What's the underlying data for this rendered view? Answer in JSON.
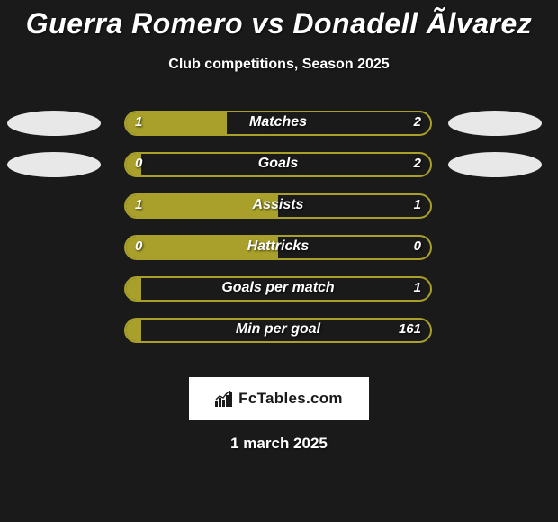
{
  "title": "Guerra Romero vs Donadell Ãlvarez",
  "subtitle": "Club competitions, Season 2025",
  "footer_date": "1 march 2025",
  "logo_text": "FcTables.com",
  "colors": {
    "background": "#1a1a1a",
    "left_team": "#a8a02a",
    "right_team": "#e8e8e8",
    "text": "#ffffff",
    "logo_bg": "#ffffff",
    "logo_text": "#1a1a1a"
  },
  "stats": [
    {
      "label": "Matches",
      "left_value": "1",
      "right_value": "2",
      "fill_pct": 33,
      "border_color": "#a8a02a",
      "show_left_ellipse": true,
      "show_right_ellipse": true,
      "left_ellipse_color": "#e8e8e8",
      "right_ellipse_color": "#e8e8e8"
    },
    {
      "label": "Goals",
      "left_value": "0",
      "right_value": "2",
      "fill_pct": 5,
      "border_color": "#a8a02a",
      "show_left_ellipse": true,
      "show_right_ellipse": true,
      "left_ellipse_color": "#e8e8e8",
      "right_ellipse_color": "#e8e8e8"
    },
    {
      "label": "Assists",
      "left_value": "1",
      "right_value": "1",
      "fill_pct": 50,
      "border_color": "#a8a02a",
      "show_left_ellipse": false,
      "show_right_ellipse": false
    },
    {
      "label": "Hattricks",
      "left_value": "0",
      "right_value": "0",
      "fill_pct": 50,
      "border_color": "#a8a02a",
      "show_left_ellipse": false,
      "show_right_ellipse": false
    },
    {
      "label": "Goals per match",
      "left_value": "",
      "right_value": "1",
      "fill_pct": 5,
      "border_color": "#a8a02a",
      "show_left_ellipse": false,
      "show_right_ellipse": false
    },
    {
      "label": "Min per goal",
      "left_value": "",
      "right_value": "161",
      "fill_pct": 5,
      "border_color": "#a8a02a",
      "show_left_ellipse": false,
      "show_right_ellipse": false
    }
  ]
}
